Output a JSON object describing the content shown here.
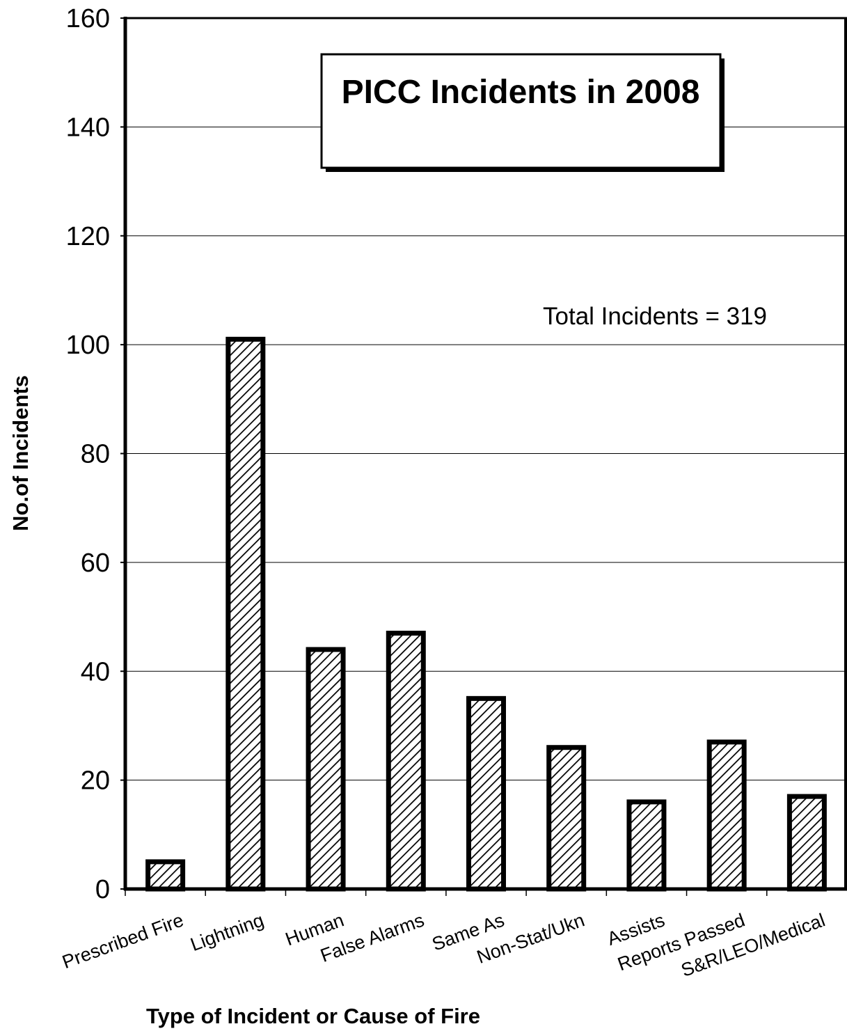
{
  "chart_data": {
    "type": "bar",
    "title": "PICC Incidents in 2008",
    "xlabel": "Type of Incident or Cause of Fire",
    "ylabel": "No.of Incidents",
    "annotation": "Total Incidents = 319",
    "categories": [
      "Prescribed Fire",
      "Lightning",
      "Human",
      "False Alarms",
      "Same As",
      "Non-Stat/Ukn",
      "Assists",
      "Reports Passed",
      "S&R/LEO/Medical"
    ],
    "values": [
      5,
      101,
      44,
      47,
      35,
      26,
      16,
      27,
      17
    ],
    "ylim": [
      0,
      160
    ],
    "yticks": [
      "0",
      "20",
      "40",
      "60",
      "80",
      "100",
      "120",
      "140",
      "160"
    ],
    "grid": true,
    "bar_pattern": "diagonal-hatch",
    "colors": {
      "bar_fill": "#ffffff",
      "hatch": "#000000",
      "outline": "#000000"
    }
  }
}
